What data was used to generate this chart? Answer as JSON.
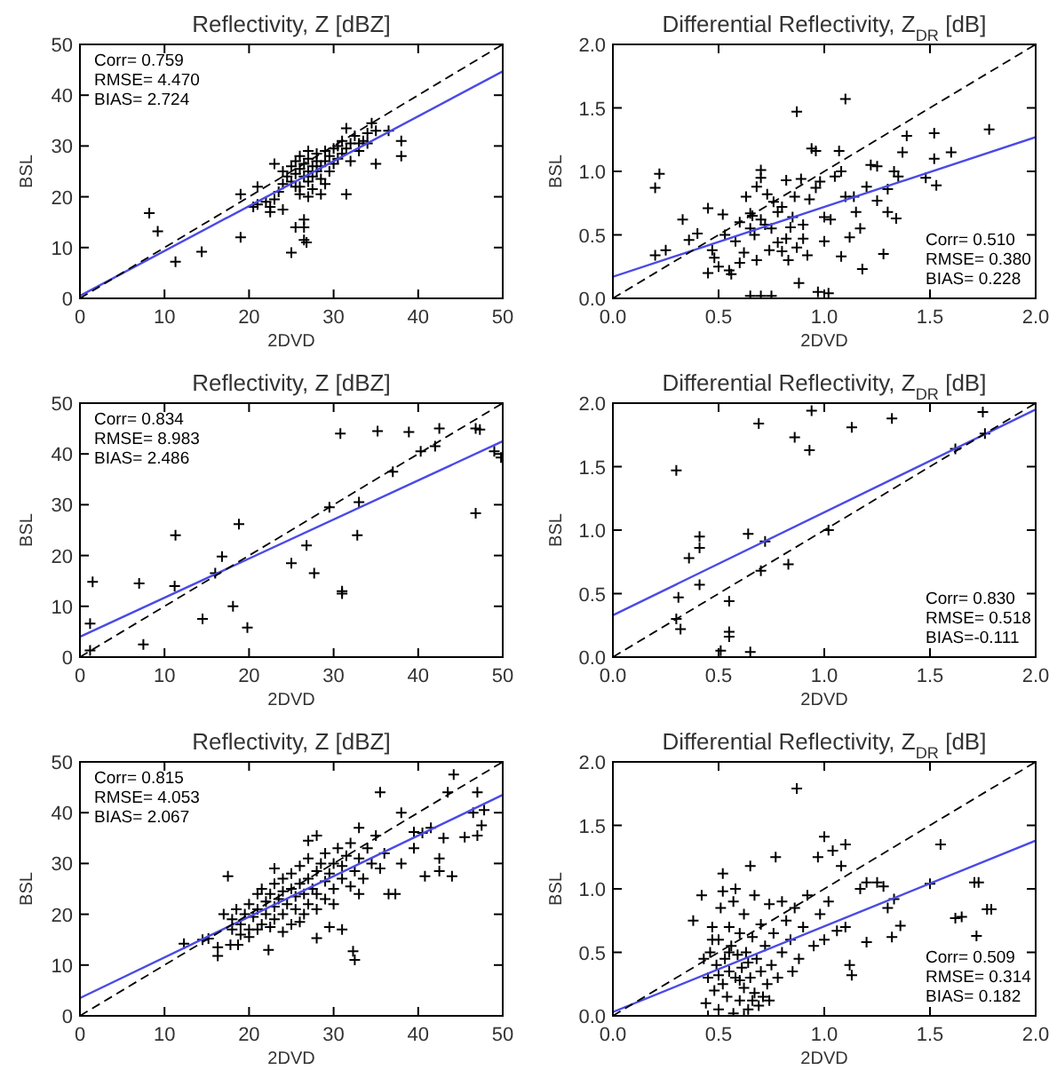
{
  "chart_data": [
    {
      "type": "scatter",
      "title": "Reflectivity, Z [dBZ]",
      "xlabel": "2DVD",
      "ylabel": "BSL",
      "xlim": [
        0,
        50
      ],
      "ylim": [
        0,
        50
      ],
      "xticks": [
        0,
        10,
        20,
        30,
        40,
        50
      ],
      "yticks": [
        0,
        10,
        20,
        30,
        40,
        50
      ],
      "annotations": [
        "Corr= 0.759",
        "RMSE= 4.470",
        "BIAS= 2.724"
      ],
      "series": [
        {
          "color": "#000000",
          "marker": "cross",
          "x": [
            8.2,
            9.2,
            11.3,
            14.4,
            19,
            19,
            21,
            21,
            22.5,
            23,
            25,
            25.5,
            26.5,
            26.5,
            26.8,
            26.5,
            27,
            28.5,
            31.5,
            31.5,
            35,
            36.5,
            38,
            38,
            34.5,
            35,
            33,
            34,
            23.5,
            24,
            24,
            24.5,
            25,
            25,
            25.5,
            25.5,
            26,
            26,
            26,
            26.5,
            26.5,
            27,
            27,
            27,
            27,
            27.5,
            27.5,
            28,
            28,
            28,
            28.5,
            28.5,
            29,
            29,
            29.5,
            29.5,
            30,
            30,
            30.5,
            30.5,
            31,
            31,
            31.5,
            32,
            32,
            32.5,
            33,
            33.5,
            34,
            22,
            22.5,
            24,
            23,
            26,
            25.5,
            20.5,
            27.5,
            29
          ],
          "values": [
            16.8,
            13.2,
            7.2,
            9.2,
            20.5,
            12,
            22,
            18.5,
            17,
            26.5,
            9,
            14,
            15.5,
            11.5,
            11,
            14,
            20,
            20.5,
            20.5,
            33.5,
            26.5,
            33,
            31,
            28,
            34.5,
            33,
            30.5,
            30.5,
            21,
            22.5,
            25,
            24,
            23,
            26,
            24.5,
            27,
            22,
            25.5,
            28,
            24,
            26.5,
            23,
            25,
            27.5,
            29,
            24,
            26,
            25,
            27,
            28.5,
            23.5,
            26,
            27,
            29,
            25,
            28,
            26.5,
            29.5,
            27.5,
            30,
            28.5,
            31,
            29.5,
            27,
            30.5,
            32,
            29,
            31,
            32.5,
            19,
            18,
            17.5,
            19.5,
            20.5,
            22,
            18,
            21.5,
            22.5
          ]
        },
        {
          "type": "line",
          "color": "#4a4ae6",
          "x": [
            0,
            50
          ],
          "values": [
            0.5,
            44.7
          ]
        },
        {
          "type": "line",
          "color": "#000000",
          "line_style": "dashed",
          "x": [
            0,
            50
          ],
          "values": [
            0,
            50
          ]
        }
      ]
    },
    {
      "type": "scatter",
      "title": "Differential Reflectivity, Z$_{DR}$ [dB]",
      "xlabel": "2DVD",
      "ylabel": "BSL",
      "xlim": [
        0,
        2
      ],
      "ylim": [
        0,
        2
      ],
      "xticks": [
        {
          "value": 0,
          "label": "0.0"
        },
        0.5,
        {
          "value": 1,
          "label": "1.0"
        },
        1.5,
        {
          "value": 2,
          "label": "2.0"
        }
      ],
      "yticks": [
        {
          "value": 0,
          "label": "0.0"
        },
        0.5,
        {
          "value": 1,
          "label": "1.0"
        },
        1.5,
        {
          "value": 2,
          "label": "2.0"
        }
      ],
      "annotations": [
        "Corr= 0.510",
        "RMSE= 0.380",
        "BIAS= 0.228"
      ],
      "series": [
        {
          "color": "#000000",
          "marker": "cross",
          "x": [
            0.2,
            0.22,
            0.2,
            0.25,
            0.33,
            0.36,
            0.4,
            0.45,
            0.45,
            0.47,
            0.48,
            0.5,
            0.52,
            0.53,
            0.55,
            0.56,
            0.58,
            0.6,
            0.6,
            0.62,
            0.63,
            0.65,
            0.65,
            0.65,
            0.66,
            0.67,
            0.68,
            0.68,
            0.7,
            0.7,
            0.7,
            0.7,
            0.72,
            0.73,
            0.74,
            0.75,
            0.75,
            0.76,
            0.78,
            0.78,
            0.8,
            0.8,
            0.82,
            0.82,
            0.83,
            0.84,
            0.85,
            0.86,
            0.87,
            0.87,
            0.88,
            0.89,
            0.9,
            0.9,
            0.92,
            0.93,
            0.94,
            0.96,
            0.96,
            0.97,
            0.98,
            1.0,
            1.0,
            1.02,
            1.03,
            1.05,
            1.07,
            1.08,
            1.08,
            1.1,
            1.1,
            1.12,
            1.14,
            1.15,
            1.17,
            1.18,
            1.2,
            1.22,
            1.25,
            1.25,
            1.28,
            1.3,
            1.3,
            1.33,
            1.34,
            1.35,
            1.37,
            1.39,
            1.48,
            1.52,
            1.52,
            1.53,
            1.6,
            1.78
          ],
          "values": [
            0.87,
            0.98,
            0.34,
            0.38,
            0.62,
            0.46,
            0.51,
            0.71,
            0.2,
            0.38,
            0.32,
            0.25,
            0.66,
            0.5,
            0.22,
            0.19,
            0.45,
            0.6,
            0.28,
            0.36,
            0.8,
            0.67,
            0.55,
            0.02,
            0.65,
            0.5,
            0.3,
            0.88,
            1.01,
            0.95,
            0.62,
            0.02,
            0.58,
            0.82,
            0.38,
            0.55,
            0.02,
            0.76,
            0.44,
            0.68,
            0.72,
            0.37,
            0.93,
            0.47,
            0.3,
            0.56,
            0.64,
            0.8,
            1.47,
            0.4,
            0.12,
            0.94,
            0.58,
            0.47,
            0.34,
            0.78,
            1.18,
            1.16,
            0.87,
            0.05,
            0.92,
            0.64,
            0.45,
            0.04,
            0.62,
            0.96,
            1.16,
            1.0,
            0.33,
            1.57,
            0.8,
            0.48,
            0.8,
            0.68,
            0.55,
            0.23,
            0.88,
            1.05,
            1.04,
            0.77,
            0.35,
            0.86,
            0.68,
            1.0,
            0.63,
            0.96,
            1.15,
            1.28,
            0.95,
            1.3,
            1.1,
            0.89,
            1.15,
            1.33
          ]
        },
        {
          "type": "line",
          "color": "#4a4ae6",
          "x": [
            0,
            2
          ],
          "values": [
            0.17,
            1.27
          ]
        },
        {
          "type": "line",
          "color": "#000000",
          "line_style": "dashed",
          "x": [
            0,
            2
          ],
          "values": [
            0,
            2
          ]
        }
      ]
    },
    {
      "type": "scatter",
      "title": "Reflectivity, Z [dBZ]",
      "xlabel": "2DVD",
      "ylabel": "BSL",
      "xlim": [
        0,
        50
      ],
      "ylim": [
        0,
        50
      ],
      "xticks": [
        0,
        10,
        20,
        30,
        40,
        50
      ],
      "yticks": [
        0,
        10,
        20,
        30,
        40,
        50
      ],
      "annotations": [
        "Corr= 0.834",
        "RMSE= 8.983",
        "BIAS= 2.486"
      ],
      "series": [
        {
          "color": "#000000",
          "marker": "cross",
          "x": [
            1.5,
            1.2,
            1.2,
            7,
            7.5,
            11.2,
            11.3,
            14.5,
            16.8,
            18.1,
            18.8,
            19.8,
            25,
            26.8,
            27.7,
            29.5,
            30.8,
            31,
            31,
            32.8,
            33,
            35.2,
            37,
            38.9,
            40.3,
            42,
            42.5,
            46.8,
            47.3,
            46.8,
            49,
            49.8,
            16
          ],
          "values": [
            14.8,
            6.6,
            1.3,
            14.5,
            2.5,
            14,
            24,
            7.5,
            19.8,
            10,
            26.2,
            5.8,
            18.5,
            22,
            16.5,
            29.5,
            44,
            12.5,
            13,
            24,
            30.5,
            44.5,
            36.5,
            44.3,
            40.5,
            41.5,
            45,
            45,
            44.8,
            28.3,
            40.5,
            39.3,
            16.5
          ]
        },
        {
          "type": "line",
          "color": "#4a4ae6",
          "x": [
            0,
            50
          ],
          "values": [
            4,
            42.5
          ]
        },
        {
          "type": "line",
          "color": "#000000",
          "line_style": "dashed",
          "x": [
            0,
            50
          ],
          "values": [
            0,
            50
          ]
        }
      ]
    },
    {
      "type": "scatter",
      "title": "Differential Reflectivity, Z$_{DR}$ [dB]",
      "xlabel": "2DVD",
      "ylabel": "BSL",
      "xlim": [
        0,
        2
      ],
      "ylim": [
        0,
        2
      ],
      "xticks": [
        {
          "value": 0,
          "label": "0.0"
        },
        0.5,
        {
          "value": 1,
          "label": "1.0"
        },
        1.5,
        {
          "value": 2,
          "label": "2.0"
        }
      ],
      "yticks": [
        {
          "value": 0,
          "label": "0.0"
        },
        0.5,
        {
          "value": 1,
          "label": "1.0"
        },
        1.5,
        {
          "value": 2,
          "label": "2.0"
        }
      ],
      "annotations": [
        "Corr= 0.830",
        "RMSE= 0.518",
        "BIAS=-0.111"
      ],
      "series": [
        {
          "color": "#000000",
          "marker": "cross",
          "x": [
            0.3,
            0.31,
            0.3,
            0.32,
            0.36,
            0.41,
            0.41,
            0.41,
            0.51,
            0.55,
            0.55,
            0.55,
            0.64,
            0.65,
            0.69,
            0.7,
            0.72,
            0.83,
            0.86,
            0.93,
            0.94,
            1.02,
            1.13,
            1.32,
            1.62,
            1.75,
            1.76
          ],
          "values": [
            1.47,
            0.47,
            0.3,
            0.22,
            0.78,
            0.95,
            0.86,
            0.57,
            0.05,
            0.44,
            0.2,
            0.16,
            0.97,
            0.04,
            1.84,
            0.68,
            0.91,
            0.73,
            1.73,
            1.63,
            1.94,
            1.0,
            1.81,
            1.88,
            1.64,
            1.93,
            1.76
          ]
        },
        {
          "type": "line",
          "color": "#4a4ae6",
          "x": [
            0,
            2
          ],
          "values": [
            0.33,
            1.95
          ]
        },
        {
          "type": "line",
          "color": "#000000",
          "line_style": "dashed",
          "x": [
            0,
            2
          ],
          "values": [
            0,
            2
          ]
        }
      ]
    },
    {
      "type": "scatter",
      "title": "Reflectivity, Z [dBZ]",
      "xlabel": "2DVD",
      "ylabel": "BSL",
      "xlim": [
        0,
        50
      ],
      "ylim": [
        0,
        50
      ],
      "xticks": [
        0,
        10,
        20,
        30,
        40,
        50
      ],
      "yticks": [
        0,
        10,
        20,
        30,
        40,
        50
      ],
      "annotations": [
        "Corr= 0.815",
        "RMSE= 4.053",
        "BIAS= 2.067"
      ],
      "series": [
        {
          "color": "#000000",
          "marker": "cross",
          "x": [
            12.3,
            14.5,
            15.2,
            16.3,
            16.3,
            17.5,
            17.8,
            18.7,
            22.3,
            28,
            29.5,
            31,
            32.3,
            32.5,
            35.5,
            36.5,
            37.3,
            38,
            38,
            39.5,
            40.5,
            40.8,
            42.5,
            42.5,
            43,
            43.5,
            44,
            44.2,
            45.5,
            46.5,
            47,
            47.5,
            47.8,
            47,
            39.5,
            41.5,
            28,
            27,
            33,
            18,
            18.5,
            19,
            19.5,
            20,
            20,
            20.5,
            21,
            21,
            21.5,
            21.5,
            22,
            22,
            22.5,
            22.5,
            23,
            23,
            23,
            23.5,
            24,
            24,
            24,
            24.5,
            25,
            25,
            25,
            25.5,
            25.5,
            26,
            26,
            26.5,
            26.5,
            27,
            27,
            27,
            27.5,
            28,
            28,
            28,
            28.5,
            29,
            29,
            29,
            29.5,
            30,
            30,
            30.5,
            31,
            31,
            31.5,
            32,
            32,
            32.5,
            33,
            33.5,
            34,
            34.5,
            35,
            35.5,
            36,
            19,
            20,
            21,
            24,
            26,
            30,
            33,
            17,
            18,
            23
          ],
          "values": [
            14.2,
            15,
            15.2,
            13.5,
            11.8,
            27.5,
            14,
            14,
            13,
            15.3,
            17.5,
            17,
            12.7,
            11,
            44,
            24,
            24,
            30,
            40,
            33,
            36,
            27.5,
            28.5,
            31,
            35,
            44,
            27.5,
            47.5,
            35.2,
            40,
            35.5,
            37.5,
            40.5,
            44,
            36.2,
            37,
            35.5,
            34.5,
            37,
            19,
            21,
            18,
            20,
            17,
            22,
            19.5,
            21,
            24,
            18,
            25,
            20,
            22.5,
            17.5,
            24,
            19,
            21.5,
            26,
            23,
            20,
            24.5,
            27,
            22,
            18,
            25,
            28,
            21,
            23.5,
            26,
            29.5,
            20,
            24,
            22,
            27,
            31,
            25,
            21,
            28.5,
            24,
            30,
            23,
            26.5,
            32,
            28,
            25,
            30,
            33,
            27,
            29.5,
            31.5,
            25.5,
            34,
            28.5,
            31,
            27,
            33,
            30,
            35.5,
            29,
            32,
            16,
            15.5,
            17,
            16.5,
            18.5,
            22,
            24,
            20,
            17,
            29
          ]
        },
        {
          "type": "line",
          "color": "#4a4ae6",
          "x": [
            0,
            50
          ],
          "values": [
            3.5,
            43.5
          ]
        },
        {
          "type": "line",
          "color": "#000000",
          "line_style": "dashed",
          "x": [
            0,
            50
          ],
          "values": [
            0,
            50
          ]
        }
      ]
    },
    {
      "type": "scatter",
      "title": "Differential Reflectivity, Z$_{DR}$ [dB]",
      "xlabel": "2DVD",
      "ylabel": "BSL",
      "xlim": [
        0,
        2
      ],
      "ylim": [
        0,
        2
      ],
      "xticks": [
        {
          "value": 0,
          "label": "0.0"
        },
        0.5,
        {
          "value": 1,
          "label": "1.0"
        },
        1.5,
        {
          "value": 2,
          "label": "2.0"
        }
      ],
      "yticks": [
        {
          "value": 0,
          "label": "0.0"
        },
        0.5,
        {
          "value": 1,
          "label": "1.0"
        },
        1.5,
        {
          "value": 2,
          "label": "2.0"
        }
      ],
      "annotations": [
        "Corr= 0.509",
        "RMSE= 0.314",
        "BIAS= 0.182"
      ],
      "series": [
        {
          "color": "#000000",
          "marker": "cross",
          "x": [
            0.87,
            0.77,
            0.65,
            0.52,
            0.42,
            0.38,
            1.0,
            1.04,
            1.1,
            0.97,
            1.08,
            1.2,
            1.25,
            1.28,
            1.33,
            1.36,
            1.32,
            1.2,
            1.13,
            1.12,
            1.5,
            1.55,
            1.62,
            1.65,
            1.71,
            1.73,
            1.77,
            1.79,
            1.72,
            1.06,
            1.1,
            1.17,
            1.3,
            0.44,
            0.45,
            0.46,
            0.47,
            0.48,
            0.49,
            0.5,
            0.5,
            0.51,
            0.52,
            0.53,
            0.54,
            0.55,
            0.55,
            0.56,
            0.57,
            0.57,
            0.58,
            0.59,
            0.6,
            0.6,
            0.61,
            0.62,
            0.62,
            0.63,
            0.64,
            0.64,
            0.65,
            0.66,
            0.67,
            0.67,
            0.68,
            0.69,
            0.7,
            0.7,
            0.72,
            0.73,
            0.74,
            0.75,
            0.76,
            0.78,
            0.8,
            0.8,
            0.82,
            0.84,
            0.85,
            0.86,
            0.88,
            0.9,
            0.92,
            0.95,
            0.98,
            1.0,
            1.02,
            0.52,
            0.58,
            0.62,
            0.45,
            0.66,
            0.71,
            0.74,
            0.6,
            0.55,
            0.5,
            0.47,
            0.43
          ],
          "values": [
            1.79,
            1.25,
            1.18,
            1.12,
            0.95,
            0.75,
            1.41,
            1.3,
            1.35,
            1.25,
            1.18,
            1.05,
            1.05,
            1.02,
            0.92,
            0.71,
            0.62,
            0.58,
            0.32,
            0.4,
            1.04,
            1.35,
            0.77,
            0.78,
            1.05,
            1.05,
            0.84,
            0.84,
            0.63,
            0.67,
            0.7,
            1.0,
            0.85,
            0.1,
            0.3,
            0.5,
            0.7,
            0.2,
            0.4,
            0.05,
            0.6,
            0.85,
            0.25,
            0.45,
            0.15,
            0.35,
            0.7,
            0.55,
            0.02,
            0.9,
            0.3,
            0.48,
            0.12,
            0.65,
            0.38,
            0.22,
            0.8,
            0.5,
            0.05,
            0.42,
            0.3,
            0.62,
            0.18,
            0.95,
            0.45,
            0.08,
            0.35,
            0.72,
            0.55,
            0.25,
            0.88,
            0.4,
            0.65,
            0.3,
            0.5,
            0.9,
            0.75,
            0.6,
            0.35,
            0.85,
            0.45,
            0.7,
            0.95,
            0.55,
            0.8,
            0.6,
            0.9,
            0.98,
            1.0,
            0.0,
            0.0,
            0.12,
            0.15,
            0.12,
            0.28,
            0.5,
            0.32,
            0.6,
            0.45
          ]
        },
        {
          "type": "line",
          "color": "#4a4ae6",
          "x": [
            0,
            2
          ],
          "values": [
            0.03,
            1.38
          ]
        },
        {
          "type": "line",
          "color": "#000000",
          "line_style": "dashed",
          "x": [
            0,
            2
          ],
          "values": [
            0,
            2
          ]
        }
      ]
    }
  ]
}
